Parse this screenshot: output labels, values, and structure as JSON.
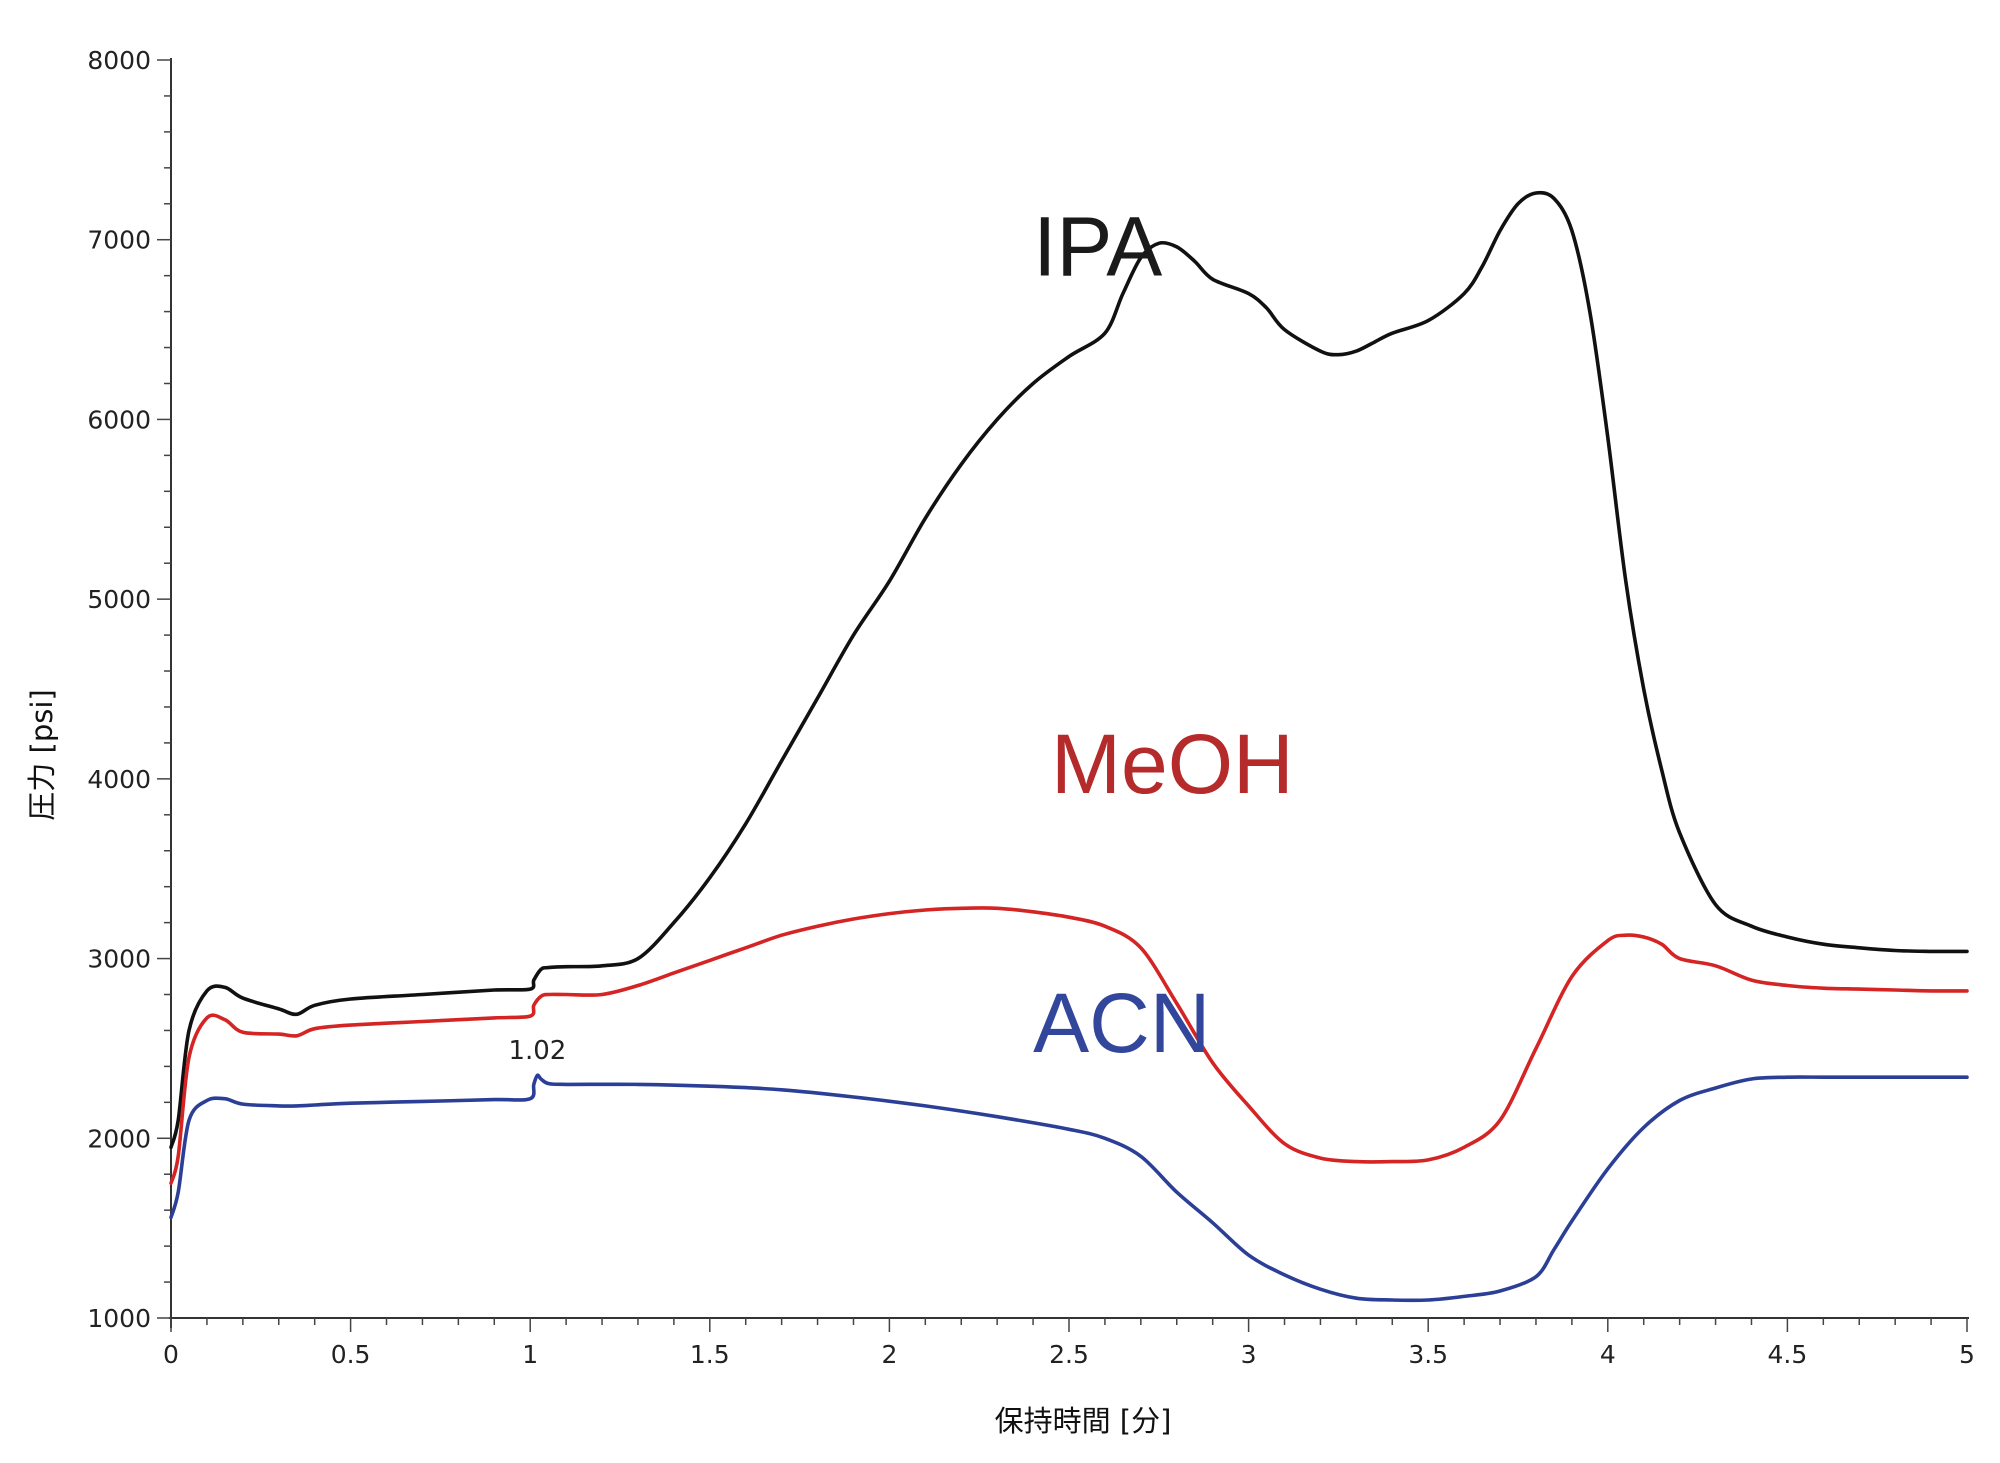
{
  "chart_data": {
    "type": "line",
    "title": "",
    "xlabel": "保持時間 [分]",
    "ylabel": "圧力 [psi]",
    "xlim": [
      0,
      5
    ],
    "ylim": [
      1000,
      8000
    ],
    "xticks": [
      0,
      0.5,
      1,
      1.5,
      2,
      2.5,
      3,
      3.5,
      4,
      4.5,
      5
    ],
    "xtick_labels": [
      "0",
      "0.5",
      "1",
      "1.5",
      "2",
      "2.5",
      "3",
      "3.5",
      "4",
      "4.5",
      "5"
    ],
    "yticks": [
      1000,
      2000,
      3000,
      4000,
      5000,
      6000,
      7000,
      8000
    ],
    "ytick_labels": [
      "1000",
      "2000",
      "3000",
      "4000",
      "5000",
      "6000",
      "7000",
      "8000"
    ],
    "grid": false,
    "series": [
      {
        "name": "IPA",
        "color": "#111111",
        "label_color": "#1a1a1a",
        "x": [
          0,
          0.02,
          0.05,
          0.1,
          0.15,
          0.2,
          0.3,
          0.35,
          0.4,
          0.5,
          0.7,
          0.9,
          1.0,
          1.01,
          1.03,
          1.05,
          1.1,
          1.2,
          1.3,
          1.4,
          1.5,
          1.6,
          1.7,
          1.8,
          1.9,
          2.0,
          2.1,
          2.2,
          2.3,
          2.4,
          2.5,
          2.6,
          2.65,
          2.7,
          2.75,
          2.8,
          2.85,
          2.9,
          3.0,
          3.05,
          3.1,
          3.2,
          3.25,
          3.3,
          3.35,
          3.4,
          3.5,
          3.6,
          3.65,
          3.7,
          3.75,
          3.8,
          3.85,
          3.9,
          3.95,
          4.0,
          4.05,
          4.1,
          4.15,
          4.2,
          4.3,
          4.4,
          4.5,
          4.6,
          4.7,
          4.8,
          4.9,
          5.0
        ],
        "y": [
          1950,
          2100,
          2600,
          2820,
          2840,
          2780,
          2720,
          2690,
          2740,
          2775,
          2800,
          2825,
          2830,
          2880,
          2940,
          2950,
          2955,
          2960,
          3000,
          3200,
          3450,
          3750,
          4100,
          4450,
          4800,
          5100,
          5450,
          5750,
          6000,
          6200,
          6350,
          6480,
          6700,
          6900,
          6980,
          6960,
          6880,
          6780,
          6700,
          6620,
          6500,
          6380,
          6360,
          6380,
          6430,
          6480,
          6550,
          6700,
          6850,
          7050,
          7200,
          7260,
          7230,
          7050,
          6600,
          5900,
          5100,
          4500,
          4050,
          3700,
          3300,
          3180,
          3120,
          3080,
          3060,
          3045,
          3040,
          3040
        ]
      },
      {
        "name": "MeOH",
        "color": "#d42424",
        "label_color": "#b52a2a",
        "x": [
          0,
          0.02,
          0.05,
          0.1,
          0.15,
          0.2,
          0.3,
          0.35,
          0.4,
          0.5,
          0.7,
          0.9,
          1.0,
          1.01,
          1.03,
          1.05,
          1.1,
          1.2,
          1.3,
          1.4,
          1.5,
          1.6,
          1.7,
          1.8,
          1.9,
          2.0,
          2.1,
          2.2,
          2.3,
          2.4,
          2.5,
          2.6,
          2.7,
          2.8,
          2.9,
          3.0,
          3.1,
          3.2,
          3.3,
          3.4,
          3.5,
          3.6,
          3.7,
          3.8,
          3.9,
          4.0,
          4.05,
          4.1,
          4.15,
          4.2,
          4.3,
          4.4,
          4.5,
          4.6,
          4.7,
          4.8,
          4.9,
          5.0
        ],
        "y": [
          1750,
          1900,
          2450,
          2670,
          2660,
          2590,
          2580,
          2570,
          2610,
          2630,
          2650,
          2670,
          2680,
          2740,
          2790,
          2800,
          2800,
          2800,
          2850,
          2920,
          2990,
          3060,
          3130,
          3180,
          3220,
          3250,
          3270,
          3280,
          3280,
          3260,
          3230,
          3180,
          3060,
          2750,
          2420,
          2180,
          1970,
          1890,
          1870,
          1870,
          1880,
          1950,
          2100,
          2500,
          2900,
          3100,
          3130,
          3120,
          3080,
          3000,
          2960,
          2880,
          2850,
          2835,
          2830,
          2825,
          2820,
          2820
        ]
      },
      {
        "name": "ACN",
        "color": "#2c3f97",
        "label_color": "#32479c",
        "x": [
          0,
          0.02,
          0.05,
          0.1,
          0.15,
          0.2,
          0.3,
          0.35,
          0.4,
          0.5,
          0.7,
          0.9,
          1.0,
          1.01,
          1.02,
          1.03,
          1.05,
          1.1,
          1.3,
          1.5,
          1.7,
          1.9,
          2.1,
          2.3,
          2.5,
          2.6,
          2.7,
          2.8,
          2.9,
          3.0,
          3.1,
          3.2,
          3.3,
          3.4,
          3.5,
          3.6,
          3.7,
          3.8,
          3.85,
          3.9,
          4.0,
          4.1,
          4.2,
          4.3,
          4.4,
          4.5,
          4.6,
          4.7,
          4.8,
          4.9,
          5.0
        ],
        "y": [
          1560,
          1700,
          2100,
          2210,
          2220,
          2190,
          2180,
          2180,
          2185,
          2195,
          2205,
          2215,
          2220,
          2300,
          2350,
          2330,
          2305,
          2300,
          2300,
          2290,
          2270,
          2230,
          2180,
          2120,
          2050,
          2000,
          1900,
          1700,
          1530,
          1350,
          1240,
          1160,
          1110,
          1100,
          1100,
          1120,
          1150,
          1230,
          1380,
          1540,
          1830,
          2060,
          2210,
          2280,
          2330,
          2340,
          2340,
          2340,
          2340,
          2340,
          2340
        ]
      }
    ],
    "series_labels": [
      {
        "name": "IPA",
        "x": 2.4,
        "y": 6800
      },
      {
        "name": "MeOH",
        "x": 2.45,
        "y": 3920
      },
      {
        "name": "ACN",
        "x": 2.4,
        "y": 2480
      }
    ],
    "annotations": [
      {
        "text": "1.02",
        "x": 1.02,
        "y": 2440
      }
    ]
  }
}
